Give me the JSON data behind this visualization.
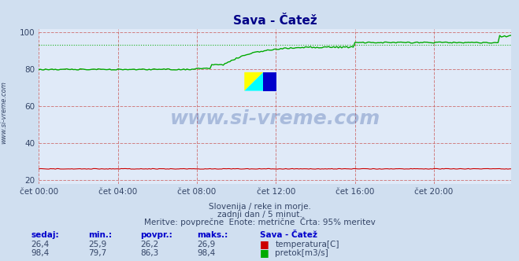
{
  "title": "Sava - Čatež",
  "bg_color": "#d0dff0",
  "plot_bg_color": "#e0eaf8",
  "dashed_line_color": "#cc6666",
  "watermark": "www.si-vreme.com",
  "watermark_color": "#4466aa",
  "xlabel_ticks": [
    "čet 00:00",
    "čet 04:00",
    "čet 08:00",
    "čet 12:00",
    "čet 16:00",
    "čet 20:00"
  ],
  "yticks": [
    20,
    40,
    60,
    80,
    100
  ],
  "ylim": [
    18,
    102
  ],
  "xlim": [
    0,
    287
  ],
  "temp_color": "#cc0000",
  "flow_color": "#00aa00",
  "subtitle1": "Slovenija / reke in morje.",
  "subtitle2": "zadnji dan / 5 minut.",
  "subtitle3": "Meritve: povprečne  Enote: metrične  Črta: 95% meritev",
  "table_header": [
    "sedaj:",
    "min.:",
    "povpr.:",
    "maks.:",
    "Sava - Čatež"
  ],
  "table_row1": [
    "26,4",
    "25,9",
    "26,2",
    "26,9"
  ],
  "table_row2": [
    "98,4",
    "79,7",
    "86,3",
    "98,4"
  ],
  "label_temp": "temperatura[C]",
  "label_flow": "pretok[m3/s]",
  "flow_min": 79.7,
  "flow_max": 98.4,
  "n_points": 288,
  "ylabel_left_text": "www.si-vreme.com"
}
